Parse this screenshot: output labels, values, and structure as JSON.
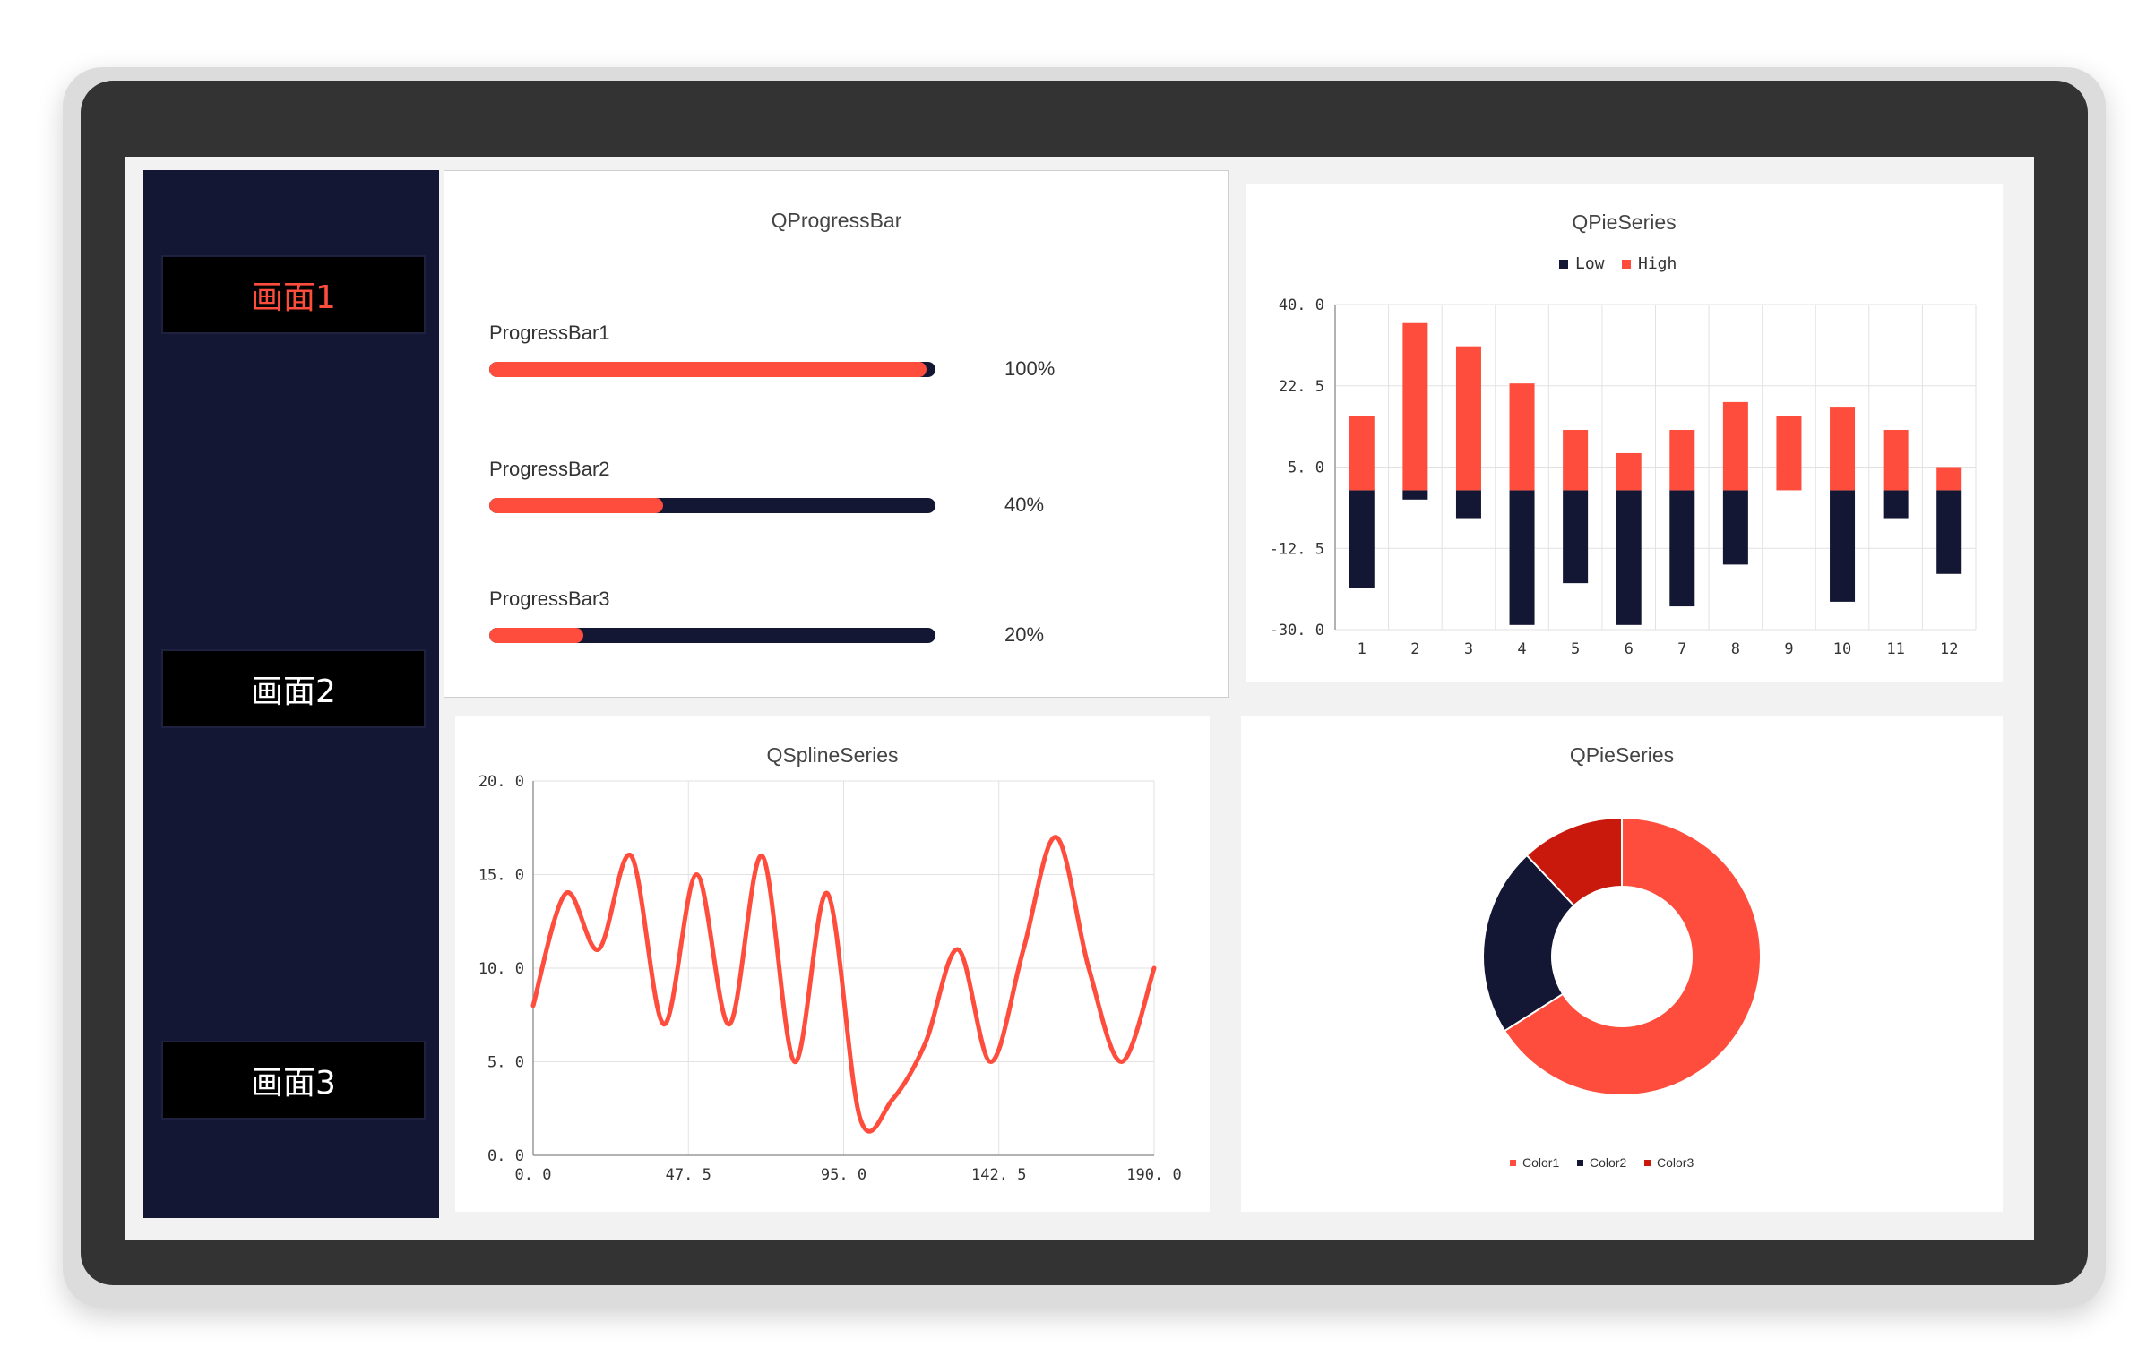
{
  "nav": {
    "items": [
      {
        "label": "画面1",
        "active": true
      },
      {
        "label": "画面2",
        "active": false
      },
      {
        "label": "画面3",
        "active": false
      }
    ]
  },
  "progress_panel": {
    "title": "QProgressBar",
    "bars": [
      {
        "label": "ProgressBar1",
        "value": 100,
        "value_text": "100%"
      },
      {
        "label": "ProgressBar2",
        "value": 40,
        "value_text": "40%"
      },
      {
        "label": "ProgressBar3",
        "value": 20,
        "value_text": "20%"
      }
    ]
  },
  "colors": {
    "accent": "#ff4d3d",
    "navy": "#141733",
    "dark_red": "#c8190c"
  },
  "chart_data": [
    {
      "type": "bar",
      "stacked": true,
      "title": "QPieSeries",
      "legend_position": "top",
      "categories": [
        "1",
        "2",
        "3",
        "4",
        "5",
        "6",
        "7",
        "8",
        "9",
        "10",
        "11",
        "12"
      ],
      "series": [
        {
          "name": "Low",
          "color": "#141733",
          "values": [
            -21,
            -2,
            -6,
            -29,
            -20,
            -29,
            -25,
            -16,
            0,
            -24,
            -6,
            -18
          ]
        },
        {
          "name": "High",
          "color": "#ff4d3d",
          "values": [
            16,
            36,
            31,
            23,
            13,
            8,
            13,
            19,
            16,
            18,
            13,
            5
          ]
        }
      ],
      "ylim": [
        -30,
        40
      ],
      "yticks": [
        "40. 0",
        "22. 5",
        "5. 0",
        "-12. 5",
        "-30. 0"
      ],
      "grid": true
    },
    {
      "type": "line",
      "spline": true,
      "title": "QSplineSeries",
      "color": "#ff4d3d",
      "x": [
        0,
        10,
        20,
        30,
        40,
        50,
        60,
        70,
        80,
        90,
        100,
        110,
        120,
        130,
        140,
        150,
        160,
        170,
        180,
        190
      ],
      "y": [
        8,
        14,
        11,
        16,
        7,
        15,
        7,
        16,
        5,
        14,
        2,
        3,
        6,
        11,
        5,
        11,
        17,
        10,
        5,
        10
      ],
      "xlim": [
        0,
        190
      ],
      "ylim": [
        0,
        20
      ],
      "xticks": [
        "0. 0",
        "47. 5",
        "95. 0",
        "142. 5",
        "190. 0"
      ],
      "yticks": [
        "20. 0",
        "15. 0",
        "10. 0",
        "5. 0",
        "0. 0"
      ],
      "grid": true
    },
    {
      "type": "pie",
      "donut": true,
      "title": "QPieSeries",
      "legend_position": "bottom",
      "slices": [
        {
          "name": "Color1",
          "value": 66,
          "color": "#ff4d3d"
        },
        {
          "name": "Color2",
          "value": 22,
          "color": "#141733"
        },
        {
          "name": "Color3",
          "value": 12,
          "color": "#c8190c"
        }
      ]
    }
  ]
}
